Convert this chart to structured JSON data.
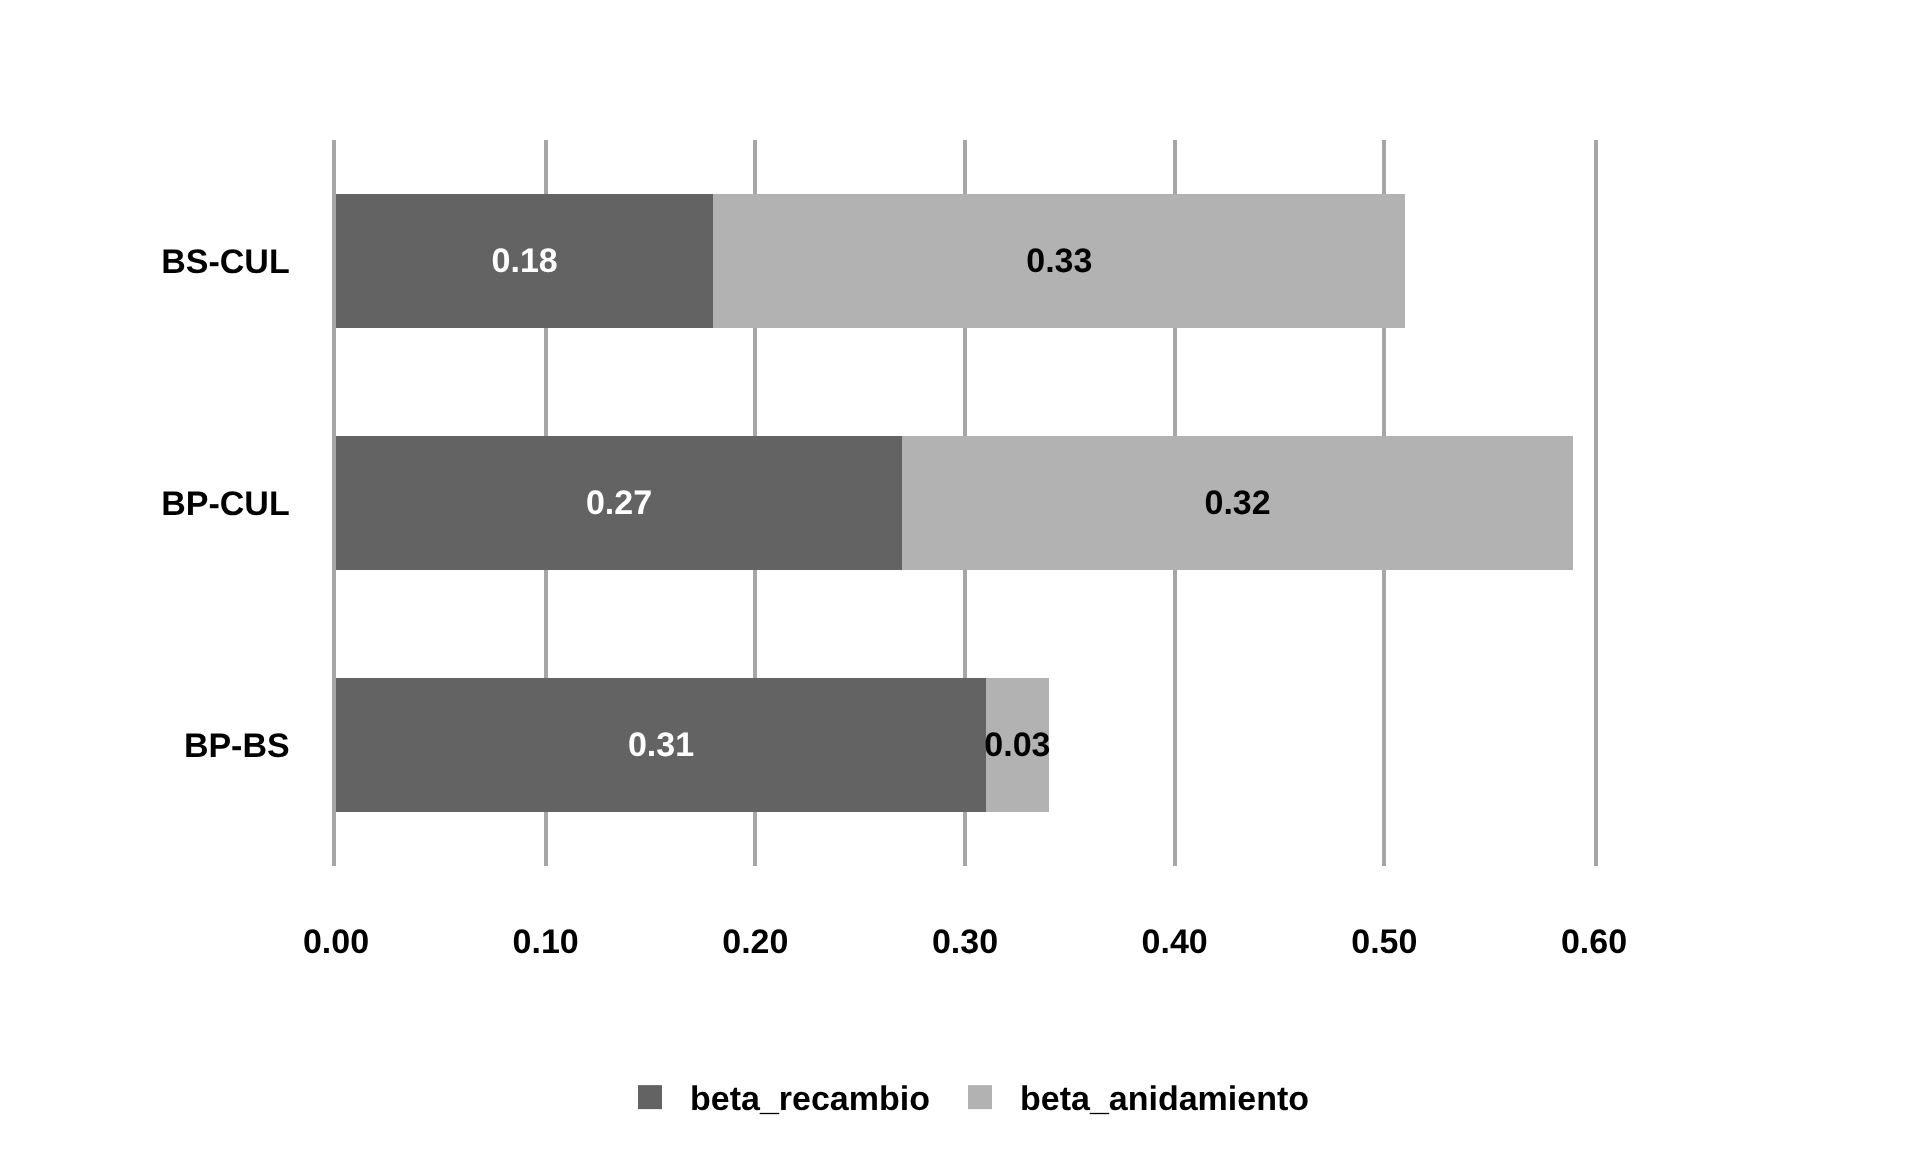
{
  "chart_data": {
    "type": "bar",
    "orientation": "horizontal",
    "stacked": true,
    "categories": [
      "BS-CUL",
      "BP-CUL",
      "BP-BS"
    ],
    "series": [
      {
        "name": "beta_recambio",
        "color": "#636363",
        "values": [
          0.18,
          0.27,
          0.31
        ]
      },
      {
        "name": "beta_anidamiento",
        "color": "#b2b2b2",
        "values": [
          0.33,
          0.32,
          0.03
        ]
      }
    ],
    "xlim": [
      0,
      0.6
    ],
    "xticks": [
      {
        "value": 0,
        "label": "0.00"
      },
      {
        "value": 0.1,
        "label": "0.10"
      },
      {
        "value": 0.2,
        "label": "0.20"
      },
      {
        "value": 0.3,
        "label": "0.30"
      },
      {
        "value": 0.4,
        "label": "0.40"
      },
      {
        "value": 0.5,
        "label": "0.50"
      },
      {
        "value": 0.6,
        "label": "0.60"
      }
    ],
    "grid": "x",
    "legend": "bottom",
    "data_labels": true
  }
}
